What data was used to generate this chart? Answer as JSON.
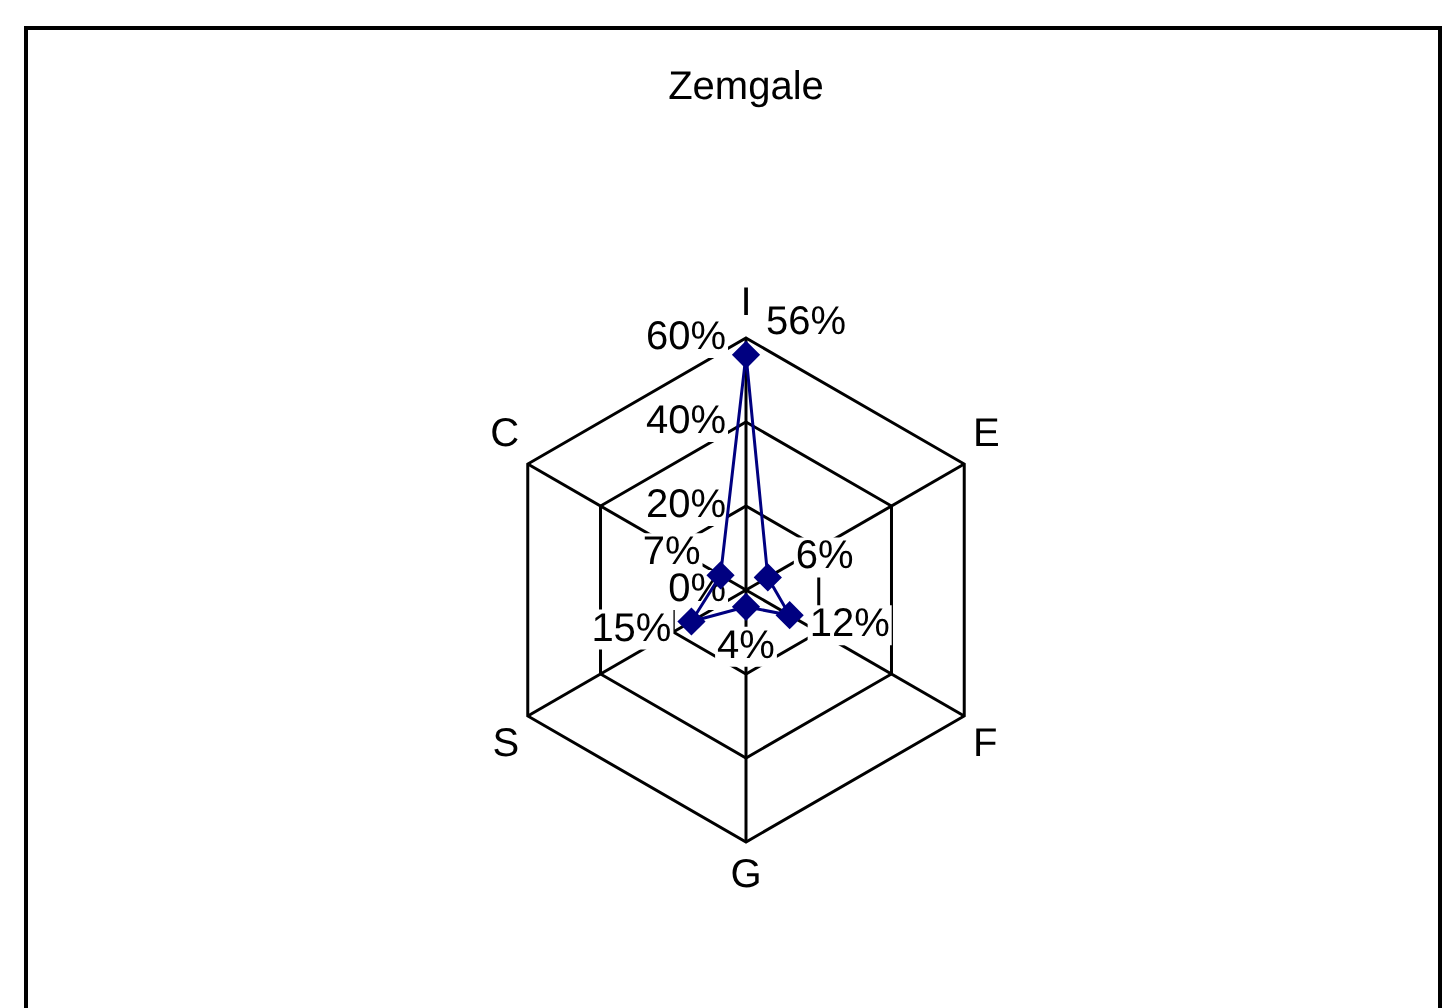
{
  "chart_data": {
    "type": "radar",
    "title": "Zemgale",
    "categories": [
      "I",
      "E",
      "F",
      "G",
      "S",
      "C"
    ],
    "series": [
      {
        "color": "#000080",
        "values": [
          56,
          6,
          12,
          4,
          15,
          7
        ],
        "value_labels": [
          "56%",
          "6%",
          "12%",
          "4%",
          "15%",
          "7%"
        ]
      }
    ],
    "ylim": [
      0,
      60
    ],
    "yticks": [
      {
        "value": 0,
        "label": "0%"
      },
      {
        "value": 20,
        "label": "20%"
      },
      {
        "value": 40,
        "label": "40%"
      },
      {
        "value": 60,
        "label": "60%"
      }
    ],
    "grid": true,
    "marker": "diamond",
    "line_style": "solid"
  }
}
